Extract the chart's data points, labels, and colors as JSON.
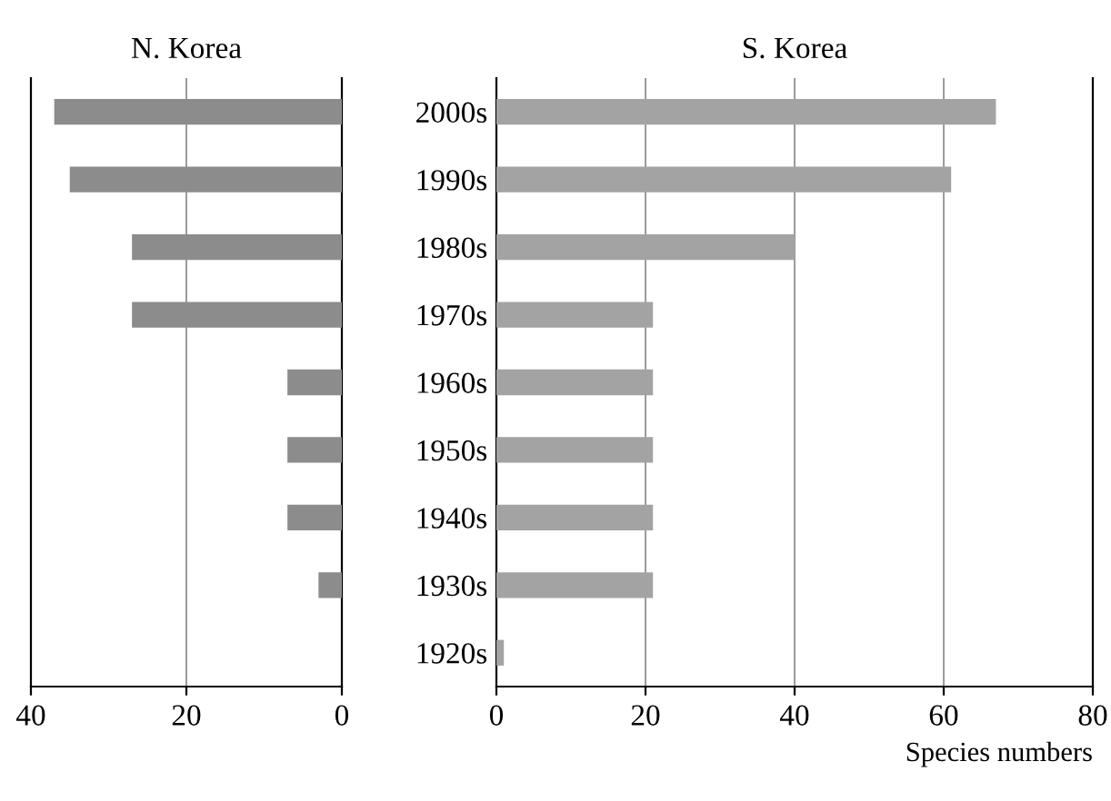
{
  "chart_data": [
    {
      "type": "bar",
      "orientation": "horizontal",
      "title": "N. Korea",
      "categories": [
        null,
        null,
        null,
        null,
        null,
        null,
        null,
        null,
        null
      ],
      "values": [
        37,
        35,
        27,
        27,
        7,
        7,
        7,
        3,
        0
      ],
      "color": "#8c8c8c",
      "xlim": [
        40,
        0
      ],
      "xticks": [
        40,
        20,
        0
      ],
      "grid": "x"
    },
    {
      "type": "bar",
      "orientation": "horizontal",
      "title": "S. Korea",
      "xlabel": "Species numbers",
      "categories": [
        "2000s",
        "1990s",
        "1980s",
        "1970s",
        "1960s",
        "1950s",
        "1940s",
        "1930s",
        "1920s"
      ],
      "values": [
        67,
        61,
        40,
        21,
        21,
        21,
        21,
        21,
        1
      ],
      "color": "#a3a3a3",
      "xlim": [
        0,
        80
      ],
      "xticks": [
        0,
        20,
        40,
        60,
        80
      ],
      "grid": "x"
    }
  ]
}
